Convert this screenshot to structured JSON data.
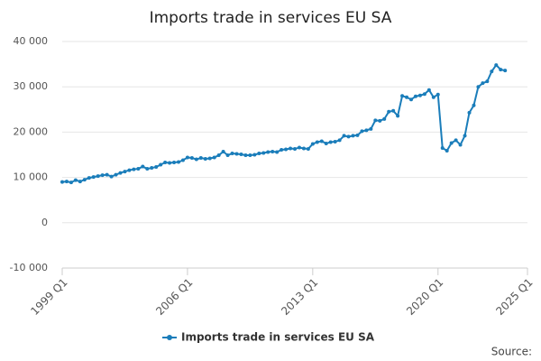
{
  "chart_data": {
    "type": "line",
    "title": "Imports trade in services EU SA",
    "source": "Source:",
    "x": [
      1999,
      1999.25,
      1999.5,
      1999.75,
      2000,
      2000.25,
      2000.5,
      2000.75,
      2001,
      2001.25,
      2001.5,
      2001.75,
      2002,
      2002.25,
      2002.5,
      2002.75,
      2003,
      2003.25,
      2003.5,
      2003.75,
      2004,
      2004.25,
      2004.5,
      2004.75,
      2005,
      2005.25,
      2005.5,
      2005.75,
      2006,
      2006.25,
      2006.5,
      2006.75,
      2007,
      2007.25,
      2007.5,
      2007.75,
      2008,
      2008.25,
      2008.5,
      2008.75,
      2009,
      2009.25,
      2009.5,
      2009.75,
      2010,
      2010.25,
      2010.5,
      2010.75,
      2011,
      2011.25,
      2011.5,
      2011.75,
      2012,
      2012.25,
      2012.5,
      2012.75,
      2013,
      2013.25,
      2013.5,
      2013.75,
      2014,
      2014.25,
      2014.5,
      2014.75,
      2015,
      2015.25,
      2015.5,
      2015.75,
      2016,
      2016.25,
      2016.5,
      2016.75,
      2017,
      2017.25,
      2017.5,
      2017.75,
      2018,
      2018.25,
      2018.5,
      2018.75,
      2019,
      2019.25,
      2019.5,
      2019.75,
      2020,
      2020.25,
      2020.5,
      2020.75,
      2021,
      2021.25,
      2021.5,
      2021.75,
      2022,
      2022.25,
      2022.5,
      2022.75,
      2023,
      2023.25,
      2023.5,
      2023.75
    ],
    "series": [
      {
        "name": "Imports trade in services EU SA",
        "color": "#1a7dba",
        "values": [
          9000,
          9100,
          8900,
          9400,
          9100,
          9500,
          9900,
          10100,
          10300,
          10500,
          10600,
          10200,
          10600,
          11000,
          11300,
          11600,
          11800,
          11900,
          12400,
          11900,
          12100,
          12300,
          12800,
          13300,
          13200,
          13300,
          13400,
          13800,
          14400,
          14300,
          14000,
          14300,
          14100,
          14200,
          14400,
          14900,
          15700,
          14900,
          15300,
          15200,
          15100,
          14900,
          14900,
          15000,
          15300,
          15400,
          15600,
          15700,
          15600,
          16100,
          16200,
          16400,
          16300,
          16600,
          16400,
          16300,
          17400,
          17800,
          18000,
          17500,
          17800,
          17900,
          18200,
          19200,
          19000,
          19200,
          19300,
          20200,
          20400,
          20700,
          22600,
          22500,
          22900,
          24500,
          24700,
          23600,
          28000,
          27700,
          27200,
          27900,
          28100,
          28400,
          29300,
          27700,
          28300,
          16500,
          15900,
          17600,
          18200,
          17200,
          19200,
          24300,
          25900,
          30000,
          30800,
          31200,
          33400,
          34800,
          33800,
          33600
        ]
      }
    ],
    "xlim": [
      1999,
      2025
    ],
    "xticks": [
      {
        "value": 1999,
        "label": "1999 Q1"
      },
      {
        "value": 2006,
        "label": "2006 Q1"
      },
      {
        "value": 2013,
        "label": "2013 Q1"
      },
      {
        "value": 2020,
        "label": "2020 Q1"
      },
      {
        "value": 2025,
        "label": "2025 Q1"
      }
    ],
    "ylim": [
      -10000,
      40000
    ],
    "yticks": [
      {
        "value": -10000,
        "label": "-10 000"
      },
      0,
      {
        "value": 10000,
        "label": "10 000"
      },
      {
        "value": 20000,
        "label": "20 000"
      },
      {
        "value": 30000,
        "label": "30 000"
      },
      {
        "value": 40000,
        "label": "40 000"
      }
    ],
    "grid": true,
    "legend": "bottom"
  }
}
